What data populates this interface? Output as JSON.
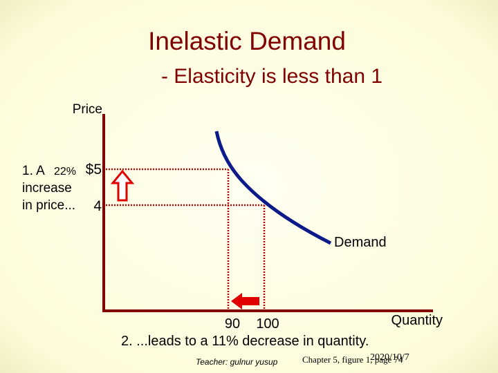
{
  "header": {
    "title": "Inelastic Demand",
    "subtitle": "- Elasticity is less than 1"
  },
  "axes": {
    "y_label": "Price",
    "x_label": "Quantity"
  },
  "prices": {
    "high": "$5",
    "low": "4"
  },
  "quantities": {
    "low": "90",
    "high": "100"
  },
  "curve_label": "Demand",
  "note_price": {
    "lines": [
      "1. A",
      "22%",
      "increase",
      "in price..."
    ]
  },
  "note_quantity": "2. ...leads to a 11% decrease in quantity.",
  "footer": {
    "teacher": "Teacher: gulnur yusup",
    "date": "2020/10/7",
    "source": "Chapter 5, figure 1, page 74"
  }
}
